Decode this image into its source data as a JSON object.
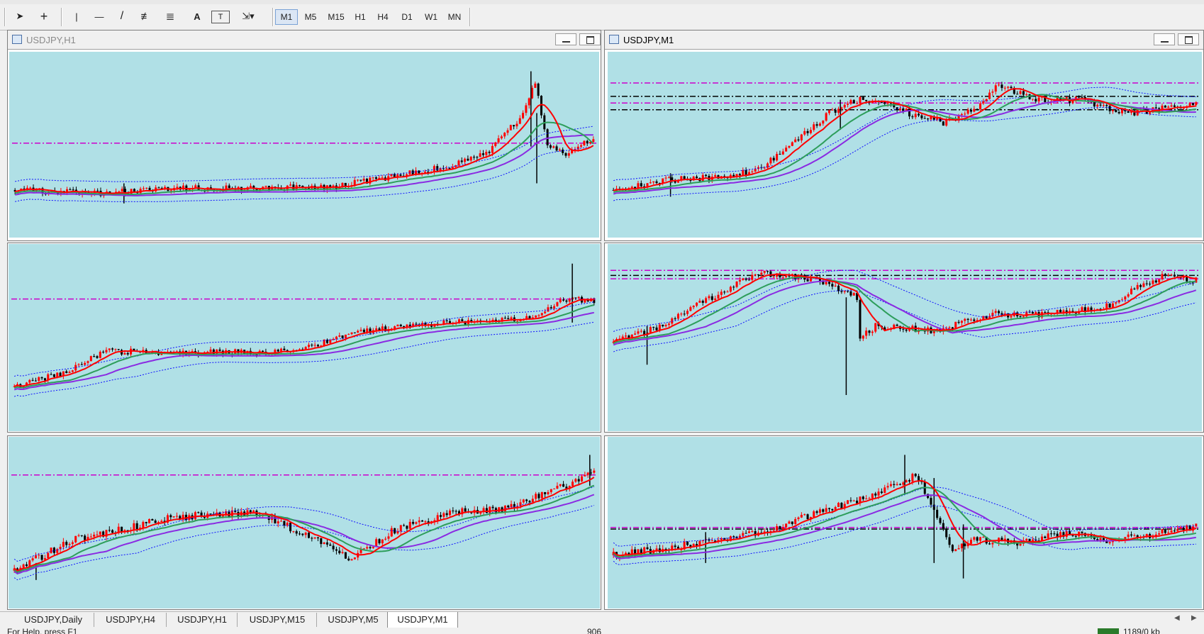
{
  "toolbar": {
    "tools": [
      {
        "name": "cursor-icon",
        "glyph": "➤"
      },
      {
        "name": "crosshair-icon",
        "glyph": "+"
      },
      {
        "name": "vertical-line-icon",
        "glyph": "|"
      },
      {
        "name": "horizontal-line-icon",
        "glyph": "—"
      },
      {
        "name": "trendline-icon",
        "glyph": "/"
      },
      {
        "name": "equidistant-channel-icon",
        "glyph": "≢"
      },
      {
        "name": "fibonacci-icon",
        "glyph": "≣"
      },
      {
        "name": "text-icon",
        "glyph": "A"
      },
      {
        "name": "text-label-icon",
        "glyph": "T"
      },
      {
        "name": "arrows-dropdown-icon",
        "glyph": "⇲▾"
      }
    ],
    "timeframes": [
      "M1",
      "M5",
      "M15",
      "H1",
      "H4",
      "D1",
      "W1",
      "MN"
    ],
    "active_timeframe": "M1"
  },
  "windows": [
    {
      "title": "USDJPY,H1",
      "active": false
    },
    {
      "title": "USDJPY,M1",
      "active": true
    }
  ],
  "tabs": [
    "USDJPY,Daily",
    "USDJPY,H4",
    "USDJPY,H1",
    "USDJPY,M15",
    "USDJPY,M5",
    "USDJPY,M1"
  ],
  "active_tab": "USDJPY,M1",
  "status": {
    "help": "For Help, press F1",
    "code": "906",
    "traffic": "1189/0 kb"
  },
  "colors": {
    "chart_bg": "#b0e0e6",
    "candle": "#ff0000",
    "candle_down": "#000000",
    "ma_fast": "#ff0000",
    "ma_mid": "#2e9e5b",
    "ma_slow": "#8a2be2",
    "bands": "#1010ff",
    "levels": "#cc00cc"
  }
}
